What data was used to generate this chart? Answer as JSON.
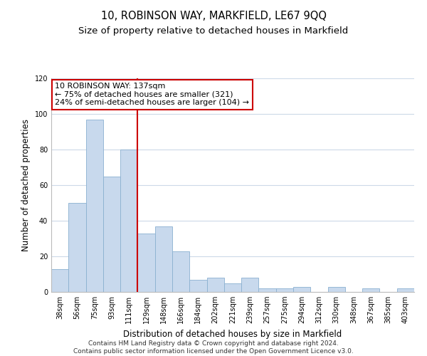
{
  "title": "10, ROBINSON WAY, MARKFIELD, LE67 9QQ",
  "subtitle": "Size of property relative to detached houses in Markfield",
  "xlabel": "Distribution of detached houses by size in Markfield",
  "ylabel": "Number of detached properties",
  "bar_labels": [
    "38sqm",
    "56sqm",
    "75sqm",
    "93sqm",
    "111sqm",
    "129sqm",
    "148sqm",
    "166sqm",
    "184sqm",
    "202sqm",
    "221sqm",
    "239sqm",
    "257sqm",
    "275sqm",
    "294sqm",
    "312sqm",
    "330sqm",
    "348sqm",
    "367sqm",
    "385sqm",
    "403sqm"
  ],
  "bar_values": [
    13,
    50,
    97,
    65,
    80,
    33,
    37,
    23,
    7,
    8,
    5,
    8,
    2,
    2,
    3,
    0,
    3,
    0,
    2,
    0,
    2
  ],
  "bar_color": "#c8d9ed",
  "bar_edge_color": "#8ab0d0",
  "annotation_title": "10 ROBINSON WAY: 137sqm",
  "annotation_line1": "← 75% of detached houses are smaller (321)",
  "annotation_line2": "24% of semi-detached houses are larger (104) →",
  "annotation_box_color": "#ffffff",
  "annotation_box_edge": "#cc0000",
  "vline_x": 4.5,
  "vline_color": "#cc0000",
  "ylim": [
    0,
    120
  ],
  "yticks": [
    0,
    20,
    40,
    60,
    80,
    100,
    120
  ],
  "footer_line1": "Contains HM Land Registry data © Crown copyright and database right 2024.",
  "footer_line2": "Contains public sector information licensed under the Open Government Licence v3.0.",
  "bg_color": "#ffffff",
  "grid_color": "#ccd9e8",
  "title_fontsize": 10.5,
  "subtitle_fontsize": 9.5,
  "label_fontsize": 8.5,
  "tick_fontsize": 7,
  "footer_fontsize": 6.5,
  "ann_fontsize": 8
}
